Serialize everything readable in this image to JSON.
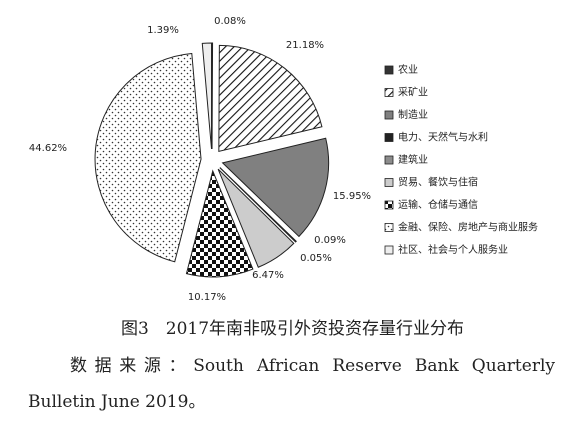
{
  "chart_data": {
    "type": "pie",
    "categories": [
      "农业",
      "采矿业",
      "制造业",
      "电力、天然气与水利",
      "建筑业",
      "贸易、餐饮与住宿",
      "运输、仓储与通信",
      "金融、保险、房地产与商业服务",
      "社区、社会与个人服务业"
    ],
    "values": [
      0.08,
      21.18,
      15.95,
      0.09,
      0.05,
      6.47,
      10.17,
      44.62,
      1.39
    ],
    "value_labels": [
      "0.08%",
      "21.18%",
      "15.95%",
      "0.09%",
      "0.05%",
      "6.47%",
      "10.17%",
      "44.62%",
      "1.39%"
    ],
    "colors": [
      "#333333",
      "#ffffff",
      "#808080",
      "#222222",
      "#8c8c8c",
      "#cccccc",
      "#ffffff",
      "#ffffff",
      "#eeeeee"
    ],
    "patterns": [
      "none",
      "diagonal",
      "none",
      "none",
      "none",
      "none",
      "checker",
      "dots",
      "none"
    ],
    "legend": "right"
  },
  "figure_caption": "图3　2017年南非吸引外资投资存量行业分布",
  "source": "数据来源：South African Reserve Bank Quarterly Bulletin June 2019。"
}
